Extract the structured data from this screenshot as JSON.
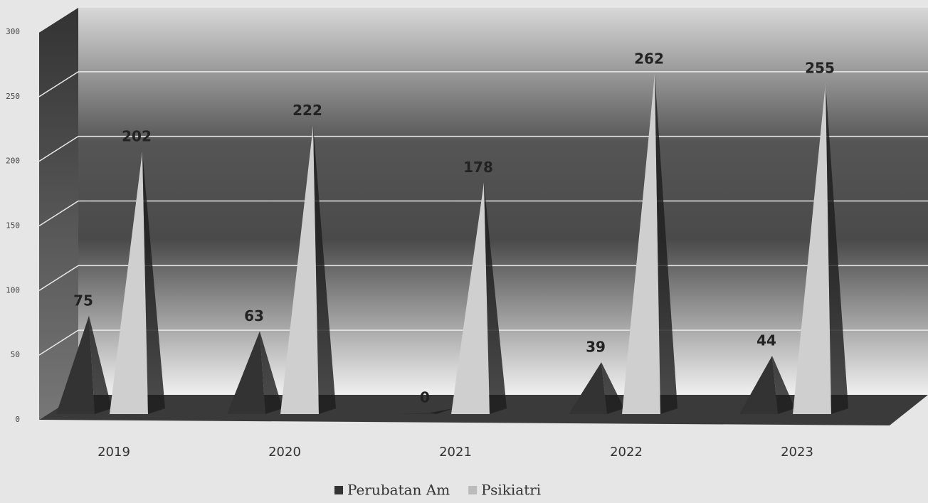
{
  "chart_data": {
    "type": "pyramid",
    "categories": [
      "2019",
      "2020",
      "2021",
      "2022",
      "2023"
    ],
    "series": [
      {
        "name": "Perubatan Am",
        "color": "#333333",
        "values": [
          75,
          63,
          0,
          39,
          44
        ]
      },
      {
        "name": "Psikiatri",
        "color": "#cfcfcf",
        "values": [
          202,
          222,
          178,
          262,
          255
        ]
      }
    ],
    "ylim": [
      0,
      300
    ],
    "yticks": [
      0,
      50,
      100,
      150,
      200,
      250,
      300
    ],
    "grid": true,
    "legend": "bottom"
  }
}
